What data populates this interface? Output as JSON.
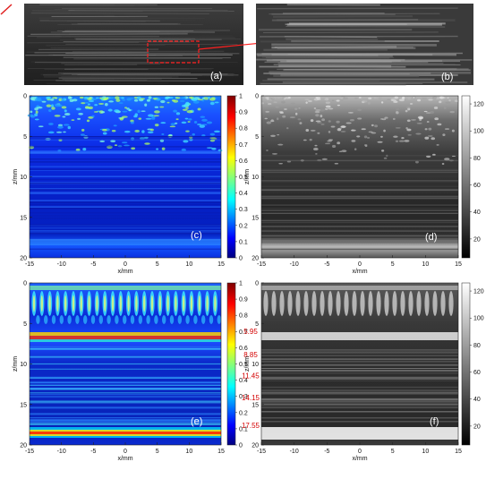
{
  "figure": {
    "panels": [
      {
        "id": "a",
        "label": "(a)"
      },
      {
        "id": "b",
        "label": "(b)"
      },
      {
        "id": "c",
        "label": "(c)",
        "xlabel": "x/mm",
        "ylabel": "z/mm",
        "xlim": [
          -15,
          15
        ],
        "ylim": [
          0,
          20
        ],
        "xticks": [
          "-15",
          "-10",
          "-5",
          "0",
          "5",
          "10",
          "15"
        ],
        "yticks": [
          "0",
          "5",
          "10",
          "15",
          "20"
        ],
        "colorbar": [
          "1",
          "0.9",
          "0.8",
          "0.7",
          "0.6",
          "0.5",
          "0.4",
          "0.3",
          "0.2",
          "0.1",
          "0"
        ],
        "colormap": "jet"
      },
      {
        "id": "d",
        "label": "(d)",
        "xlabel": "x/mm",
        "ylabel": "z/mm",
        "xlim": [
          -15,
          15
        ],
        "ylim": [
          0,
          20
        ],
        "xticks": [
          "-15",
          "-10",
          "-5",
          "0",
          "5",
          "10",
          "15"
        ],
        "yticks": [
          "0",
          "5",
          "10",
          "15",
          "20"
        ],
        "colorbar": [
          "120",
          "100",
          "80",
          "60",
          "40",
          "20"
        ],
        "colormap": "gray"
      },
      {
        "id": "e",
        "label": "(e)",
        "xlabel": "x/mm",
        "ylabel": "z/mm",
        "xlim": [
          -15,
          15
        ],
        "ylim": [
          0,
          20
        ],
        "xticks": [
          "-15",
          "-10",
          "-5",
          "0",
          "5",
          "10",
          "15"
        ],
        "yticks": [
          "0",
          "5",
          "10",
          "15",
          "20"
        ],
        "colorbar": [
          "1",
          "0.9",
          "0.8",
          "0.7",
          "0.6",
          "0.5",
          "0.4",
          "0.3",
          "0.2",
          "0.1",
          "0"
        ],
        "colormap": "jet",
        "annotations": [
          "5.95",
          "8.85",
          "11.45",
          "14.15",
          "17.55"
        ]
      },
      {
        "id": "f",
        "label": "(f)",
        "xlabel": "x/mm",
        "ylabel": "z/mm",
        "xlim": [
          -15,
          15
        ],
        "ylim": [
          0,
          20
        ],
        "xticks": [
          "-15",
          "-10",
          "-5",
          "0",
          "5",
          "10",
          "15"
        ],
        "yticks": [
          "0",
          "5",
          "10",
          "15",
          "20"
        ],
        "colorbar": [
          "120",
          "100",
          "80",
          "60",
          "40",
          "20"
        ],
        "colormap": "gray"
      }
    ]
  },
  "chart_data": [
    {
      "type": "heatmap",
      "panel": "c",
      "xlabel": "x/mm",
      "ylabel": "z/mm",
      "xlim": [
        -15,
        15
      ],
      "ylim": [
        0,
        20
      ],
      "clim": [
        0,
        1
      ]
    },
    {
      "type": "heatmap",
      "panel": "d",
      "xlabel": "x/mm",
      "ylabel": "z/mm",
      "xlim": [
        -15,
        15
      ],
      "ylim": [
        0,
        20
      ],
      "clim": [
        0,
        128
      ]
    },
    {
      "type": "heatmap",
      "panel": "e",
      "xlabel": "x/mm",
      "ylabel": "z/mm",
      "xlim": [
        -15,
        15
      ],
      "ylim": [
        0,
        20
      ],
      "clim": [
        0,
        1
      ],
      "annotations": [
        {
          "text": "5.95",
          "z": 5.95
        },
        {
          "text": "8.85",
          "z": 8.85
        },
        {
          "text": "11.45",
          "z": 11.45
        },
        {
          "text": "14.15",
          "z": 14.15
        },
        {
          "text": "17.55",
          "z": 17.55
        }
      ]
    },
    {
      "type": "heatmap",
      "panel": "f",
      "xlabel": "x/mm",
      "ylabel": "z/mm",
      "xlim": [
        -15,
        15
      ],
      "ylim": [
        0,
        20
      ],
      "clim": [
        0,
        128
      ]
    }
  ]
}
